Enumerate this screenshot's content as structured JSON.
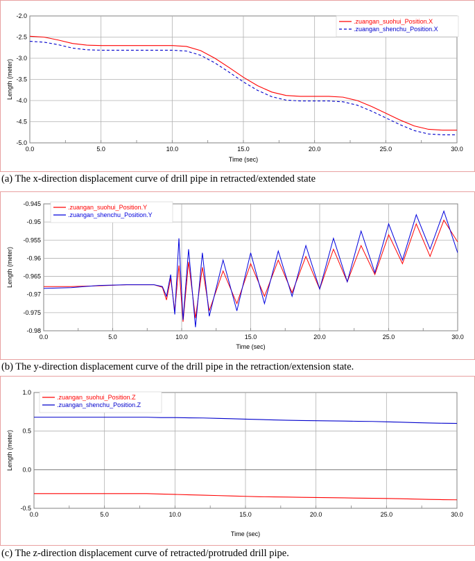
{
  "panels": [
    {
      "caption": "(a) The x-direction displacement curve of drill pipe in retracted/extended state",
      "chart_data": {
        "type": "line",
        "title": "",
        "xlabel": "Time (sec)",
        "ylabel": "Length (meter)",
        "xlim": [
          0,
          30
        ],
        "ylim": [
          -5.0,
          -2.0
        ],
        "xticks": [
          0,
          5,
          10,
          15,
          20,
          25,
          30
        ],
        "xtick_labels": [
          "0.0",
          "5.0",
          "10.0",
          "15.0",
          "20.0",
          "25.0",
          "30.0"
        ],
        "yticks": [
          -5.0,
          -4.5,
          -4.0,
          -3.5,
          -3.0,
          -2.5,
          -2.0
        ],
        "ytick_labels": [
          "-5.0",
          "-4.5",
          "-4.0",
          "-3.5",
          "-3.0",
          "-2.5",
          "-2.0"
        ],
        "grid": true,
        "legend_position": "top-right",
        "series": [
          {
            "name": ".zuangan_suohui_Position.X",
            "color": "#ff0000",
            "dash": "solid",
            "x": [
              0,
              1,
              2,
              3,
              4,
              5,
              6,
              7,
              8,
              9,
              10,
              11,
              12,
              13,
              14,
              15,
              16,
              17,
              18,
              19,
              20,
              21,
              22,
              23,
              24,
              25,
              26,
              27,
              28,
              29,
              30
            ],
            "y": [
              -2.48,
              -2.5,
              -2.57,
              -2.65,
              -2.69,
              -2.7,
              -2.7,
              -2.7,
              -2.7,
              -2.7,
              -2.7,
              -2.72,
              -2.82,
              -3.0,
              -3.22,
              -3.45,
              -3.65,
              -3.8,
              -3.88,
              -3.9,
              -3.9,
              -3.9,
              -3.92,
              -4.0,
              -4.14,
              -4.3,
              -4.46,
              -4.6,
              -4.68,
              -4.7,
              -4.7
            ]
          },
          {
            "name": ".zuangan_shenchu_Position.X",
            "color": "#0000cc",
            "dash": "dashed",
            "x": [
              0,
              1,
              2,
              3,
              4,
              5,
              6,
              7,
              8,
              9,
              10,
              11,
              12,
              13,
              14,
              15,
              16,
              17,
              18,
              19,
              20,
              21,
              22,
              23,
              24,
              25,
              26,
              27,
              28,
              29,
              30
            ],
            "y": [
              -2.6,
              -2.62,
              -2.68,
              -2.76,
              -2.8,
              -2.81,
              -2.81,
              -2.81,
              -2.81,
              -2.81,
              -2.81,
              -2.83,
              -2.93,
              -3.11,
              -3.33,
              -3.56,
              -3.76,
              -3.91,
              -3.99,
              -4.01,
              -4.01,
              -4.01,
              -4.03,
              -4.11,
              -4.25,
              -4.41,
              -4.57,
              -4.71,
              -4.79,
              -4.81,
              -4.81
            ]
          }
        ]
      }
    },
    {
      "caption": "(b) The y-direction displacement curve of the drill pipe in the retraction/extension state.",
      "chart_data": {
        "type": "line",
        "title": "",
        "xlabel": "Time (sec)",
        "ylabel": "Length (meter)",
        "xlim": [
          0,
          30
        ],
        "ylim": [
          -0.98,
          -0.945
        ],
        "xticks": [
          0,
          5,
          10,
          15,
          20,
          25,
          30
        ],
        "xtick_labels": [
          "0.0",
          "5.0",
          "10.0",
          "15.0",
          "20.0",
          "25.0",
          "30.0"
        ],
        "yticks": [
          -0.98,
          -0.975,
          -0.97,
          -0.965,
          -0.96,
          -0.955,
          -0.95,
          -0.945
        ],
        "ytick_labels": [
          "-0.98",
          "-0.975",
          "-0.97",
          "-0.965",
          "-0.96",
          "-0.955",
          "-0.95",
          "-0.945"
        ],
        "grid": true,
        "legend_position": "top-left",
        "series": [
          {
            "name": ".zuangan_suohui_Position.Y",
            "color": "#ff0000",
            "dash": "solid",
            "x": [
              0,
              2,
              4,
              6,
              8,
              8.6,
              8.9,
              9.2,
              9.5,
              9.8,
              10.1,
              10.5,
              11,
              11.5,
              12,
              13,
              14,
              15,
              16,
              17,
              18,
              19,
              20,
              21,
              22,
              23,
              24,
              25,
              26,
              27,
              28,
              29,
              30
            ],
            "y": [
              -0.9678,
              -0.9678,
              -0.9676,
              -0.9673,
              -0.9673,
              -0.968,
              -0.9715,
              -0.9655,
              -0.9745,
              -0.962,
              -0.9775,
              -0.961,
              -0.9765,
              -0.9625,
              -0.9745,
              -0.9635,
              -0.9725,
              -0.9615,
              -0.9705,
              -0.9605,
              -0.9695,
              -0.9595,
              -0.9685,
              -0.9575,
              -0.9665,
              -0.9565,
              -0.9645,
              -0.9535,
              -0.9615,
              -0.9505,
              -0.9595,
              -0.9495,
              -0.9555
            ]
          },
          {
            "name": ".zuangan_shenchu_Position.Y",
            "color": "#0000dd",
            "dash": "solid",
            "x": [
              0,
              2,
              4,
              6,
              8,
              8.6,
              8.9,
              9.2,
              9.5,
              9.8,
              10.1,
              10.5,
              11,
              11.5,
              12,
              13,
              14,
              15,
              16,
              17,
              18,
              19,
              20,
              21,
              22,
              23,
              24,
              25,
              26,
              27,
              28,
              29,
              30
            ],
            "y": [
              -0.9683,
              -0.9681,
              -0.9675,
              -0.9673,
              -0.9673,
              -0.9678,
              -0.9705,
              -0.9645,
              -0.9755,
              -0.9545,
              -0.977,
              -0.9575,
              -0.979,
              -0.9585,
              -0.976,
              -0.9605,
              -0.9745,
              -0.9585,
              -0.9725,
              -0.958,
              -0.9705,
              -0.9565,
              -0.9685,
              -0.9545,
              -0.9665,
              -0.9525,
              -0.964,
              -0.9505,
              -0.9605,
              -0.948,
              -0.9575,
              -0.947,
              -0.9585
            ]
          }
        ]
      }
    },
    {
      "caption": "(c) The z-direction displacement curve of retracted/protruded drill pipe.",
      "chart_data": {
        "type": "line",
        "title": "",
        "xlabel": "Time (sec)",
        "ylabel": "Length (meter)",
        "xlim": [
          0,
          30
        ],
        "ylim": [
          -0.5,
          1.0
        ],
        "xticks": [
          0,
          5,
          10,
          15,
          20,
          25,
          30
        ],
        "xtick_labels": [
          "0.0",
          "5.0",
          "10.0",
          "15.0",
          "20.0",
          "25.0",
          "30.0"
        ],
        "yticks": [
          -0.5,
          0.0,
          0.5,
          1.0
        ],
        "ytick_labels": [
          "-0.5",
          "0.0",
          "0.5",
          "1.0"
        ],
        "grid": true,
        "legend_position": "top-left",
        "series": [
          {
            "name": ".zuangan_suohui_Position.Z",
            "color": "#ff0000",
            "dash": "solid",
            "x": [
              0,
              2,
              4,
              6,
              8,
              9,
              10,
              11,
              12,
              13,
              14,
              15,
              16,
              17,
              18,
              19,
              20,
              21,
              22,
              23,
              24,
              25,
              26,
              27,
              28,
              29,
              30
            ],
            "y": [
              -0.31,
              -0.31,
              -0.31,
              -0.31,
              -0.31,
              -0.315,
              -0.32,
              -0.325,
              -0.33,
              -0.335,
              -0.34,
              -0.345,
              -0.35,
              -0.352,
              -0.355,
              -0.358,
              -0.36,
              -0.362,
              -0.365,
              -0.368,
              -0.37,
              -0.373,
              -0.376,
              -0.38,
              -0.385,
              -0.388,
              -0.39
            ]
          },
          {
            "name": ".zuangan_shenchu_Position.Z",
            "color": "#0000cc",
            "dash": "solid",
            "x": [
              0,
              2,
              4,
              6,
              8,
              9,
              10,
              11,
              12,
              13,
              14,
              15,
              16,
              17,
              18,
              19,
              20,
              21,
              22,
              23,
              24,
              25,
              26,
              27,
              28,
              29,
              30
            ],
            "y": [
              0.68,
              0.68,
              0.68,
              0.68,
              0.68,
              0.675,
              0.675,
              0.672,
              0.67,
              0.665,
              0.66,
              0.655,
              0.65,
              0.645,
              0.64,
              0.637,
              0.635,
              0.632,
              0.63,
              0.627,
              0.625,
              0.62,
              0.615,
              0.61,
              0.605,
              0.602,
              0.6
            ]
          }
        ]
      }
    }
  ]
}
